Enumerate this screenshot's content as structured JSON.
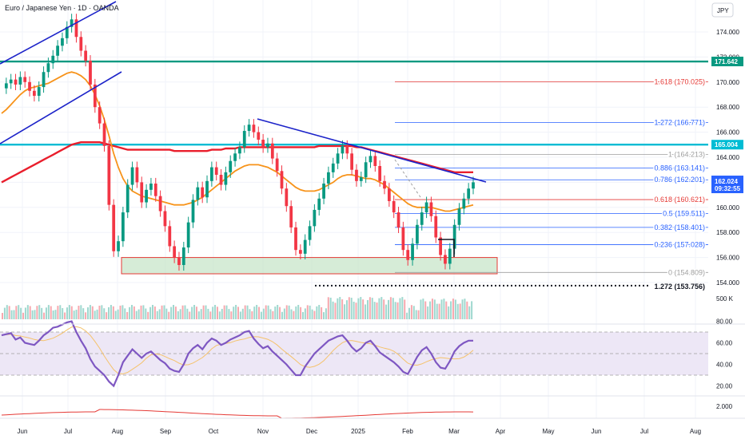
{
  "header": {
    "title": "Euro / Japanese Yen · 1D · OANDA",
    "currency_button": "JPY"
  },
  "colors": {
    "up": "#089981",
    "down": "#f23645",
    "ma_fast": "#f7931a",
    "ma_slow": "#e91e2c",
    "trend": "#1c23c9",
    "fib": "#2962ff",
    "fib_red": "#e53935",
    "teal": "#089981",
    "rsi": "#7e57c2",
    "rsi_ma": "#f5c26b",
    "rsi_band": "#ede7f6",
    "support_fill": "#c8e6c9",
    "support_border": "#e53935"
  },
  "price_axis": {
    "ticks": [
      "174.000",
      "172.000",
      "170.000",
      "168.000",
      "166.000",
      "164.000",
      "162.000",
      "160.000",
      "158.000",
      "156.000",
      "154.000"
    ],
    "tick_values": [
      174,
      172,
      170,
      168,
      166,
      164,
      162,
      160,
      158,
      156,
      154
    ],
    "highlight_levels": [
      {
        "value": 171.642,
        "label": "171.642",
        "color": "#089981"
      },
      {
        "value": 165.004,
        "label": "165.004",
        "color": "#00bcd4"
      }
    ],
    "current_price": {
      "value": 162.024,
      "label": "162.024",
      "countdown": "09:32:55",
      "color": "#2962ff"
    }
  },
  "volume_axis": {
    "label": "500 K"
  },
  "rsi_axis": {
    "ticks": [
      "80.00",
      "60.00",
      "40.00",
      "20.00"
    ],
    "tick_values": [
      80,
      60,
      40,
      20
    ]
  },
  "bottom_axis": {
    "label": "2.000"
  },
  "time_axis": {
    "labels": [
      "Jun",
      "Jul",
      "Aug",
      "Sep",
      "Oct",
      "Nov",
      "Dec",
      "2025",
      "Feb",
      "Mar",
      "Apr",
      "May",
      "Jun",
      "Jul",
      "Aug"
    ]
  },
  "fib_levels": [
    {
      "label": "1.618 (170.025)",
      "value": 170.025,
      "color": "#e53935"
    },
    {
      "label": "1.272 (166.771)",
      "value": 166.771,
      "color": "#2962ff"
    },
    {
      "label": "1 (164.213)",
      "value": 164.213,
      "color": "#9e9e9e"
    },
    {
      "label": "0.886 (163.141)",
      "value": 163.141,
      "color": "#2962ff"
    },
    {
      "label": "0.786 (162.201)",
      "value": 162.201,
      "color": "#2962ff"
    },
    {
      "label": "0.618 (160.621)",
      "value": 160.621,
      "color": "#e53935"
    },
    {
      "label": "0.5 (159.511)",
      "value": 159.511,
      "color": "#2962ff"
    },
    {
      "label": "0.382 (158.401)",
      "value": 158.401,
      "color": "#2962ff"
    },
    {
      "label": "0.236 (157.028)",
      "value": 157.028,
      "color": "#2962ff"
    },
    {
      "label": "0 (154.809)",
      "value": 154.809,
      "color": "#9e9e9e"
    }
  ],
  "extension_level": {
    "label": "1.272 (153.756)",
    "value": 153.756
  },
  "support_zone": {
    "top": 156.0,
    "bottom": 154.7
  },
  "chart_data": {
    "type": "line",
    "series": [
      {
        "values": [
          169.5,
          169.9,
          170.2,
          169.8,
          170.4,
          170.0,
          169.3,
          168.9,
          169.6,
          170.8,
          171.5,
          172.1,
          172.9,
          173.5,
          174.4,
          175.0,
          173.6,
          172.5,
          171.7,
          169.8,
          168.0,
          166.7,
          164.9,
          160.2,
          156.5,
          157.3,
          159.6,
          161.8,
          163.2,
          162.0,
          160.4,
          161.4,
          161.9,
          160.9,
          159.7,
          158.5,
          156.9,
          156.0,
          155.4,
          156.8,
          158.8,
          160.6,
          161.6,
          160.8,
          162.1,
          163.2,
          162.6,
          161.8,
          162.8,
          163.7,
          164.3,
          164.8,
          166.1,
          166.6,
          166.0,
          165.4,
          164.8,
          165.1,
          163.9,
          162.9,
          161.5,
          160.1,
          158.4,
          156.6,
          156.3,
          157.4,
          158.5,
          159.8,
          160.7,
          161.9,
          162.8,
          163.5,
          164.3,
          164.9,
          164.3,
          163.0,
          162.1,
          162.4,
          163.6,
          164.1,
          163.3,
          162.1,
          161.5,
          160.5,
          159.6,
          158.4,
          156.6,
          155.8,
          157.1,
          158.6,
          159.6,
          160.4,
          159.3,
          157.6,
          156.2,
          155.5,
          156.7,
          158.6,
          159.9,
          160.7,
          161.5,
          162.0
        ]
      },
      {
        "values": [
          167.5,
          167.8,
          168.2,
          168.6,
          169.0,
          169.3,
          169.5,
          169.6,
          169.7,
          169.8,
          169.9,
          170.1,
          170.3,
          170.5,
          170.7,
          170.8,
          170.7,
          170.5,
          170.2,
          169.7,
          169.0,
          168.1,
          167.0,
          165.7,
          164.3,
          163.2,
          162.3,
          161.7,
          161.3,
          161.1,
          160.9,
          160.8,
          160.7,
          160.6,
          160.5,
          160.4,
          160.3,
          160.2,
          160.2,
          160.2,
          160.3,
          160.4,
          160.6,
          160.8,
          161.1,
          161.4,
          161.7,
          162.0,
          162.3,
          162.6,
          162.9,
          163.1,
          163.3,
          163.4,
          163.4,
          163.4,
          163.3,
          163.2,
          163.0,
          162.8,
          162.5,
          162.2,
          161.9,
          161.6,
          161.4,
          161.3,
          161.3,
          161.3,
          161.4,
          161.6,
          161.8,
          162.0,
          162.3,
          162.5,
          162.6,
          162.6,
          162.5,
          162.4,
          162.3,
          162.3,
          162.2,
          162.0,
          161.8,
          161.5,
          161.2,
          160.9,
          160.6,
          160.3,
          160.1,
          160.0,
          160.0,
          160.0,
          160.0,
          159.9,
          159.8,
          159.7,
          159.7,
          159.8,
          159.9,
          160.0,
          160.1,
          160.2
        ]
      },
      {
        "values": [
          162.0,
          162.2,
          162.4,
          162.6,
          162.8,
          163.0,
          163.2,
          163.4,
          163.6,
          163.8,
          164.0,
          164.2,
          164.4,
          164.6,
          164.8,
          165.0,
          165.1,
          165.2,
          165.2,
          165.2,
          165.2,
          165.2,
          165.1,
          165.0,
          164.9,
          164.8,
          164.7,
          164.6,
          164.6,
          164.6,
          164.6,
          164.6,
          164.6,
          164.6,
          164.6,
          164.6,
          164.6,
          164.5,
          164.5,
          164.5,
          164.5,
          164.5,
          164.5,
          164.5,
          164.5,
          164.6,
          164.6,
          164.6,
          164.7,
          164.7,
          164.7,
          164.8,
          164.8,
          164.8,
          164.8,
          164.8,
          164.8,
          164.8,
          164.8,
          164.8,
          164.8,
          164.8,
          164.8,
          164.8,
          164.8,
          164.8,
          164.8,
          164.8,
          164.9,
          164.9,
          164.9,
          164.9,
          164.9,
          164.9,
          164.9,
          164.9,
          164.8,
          164.8,
          164.7,
          164.6,
          164.5,
          164.4,
          164.3,
          164.2,
          164.1,
          164.0,
          163.9,
          163.8,
          163.7,
          163.6,
          163.5,
          163.4,
          163.3,
          163.2,
          163.1,
          163.0,
          162.9,
          162.8,
          162.8,
          162.8,
          162.8,
          162.8
        ]
      }
    ],
    "rsi": [
      67,
      68,
      69,
      63,
      65,
      60,
      59,
      58,
      62,
      67,
      70,
      74,
      75,
      77,
      79,
      80,
      70,
      62,
      55,
      45,
      38,
      34,
      30,
      24,
      20,
      30,
      42,
      48,
      54,
      50,
      46,
      50,
      52,
      48,
      44,
      41,
      36,
      34,
      33,
      40,
      50,
      55,
      58,
      54,
      60,
      64,
      62,
      58,
      60,
      63,
      65,
      67,
      70,
      71,
      64,
      59,
      55,
      57,
      52,
      48,
      44,
      40,
      35,
      30,
      30,
      38,
      44,
      50,
      54,
      58,
      62,
      64,
      66,
      67,
      62,
      56,
      52,
      55,
      60,
      62,
      57,
      51,
      48,
      45,
      42,
      38,
      33,
      31,
      39,
      47,
      53,
      56,
      50,
      42,
      37,
      36,
      43,
      52,
      57,
      60,
      62,
      62
    ]
  }
}
